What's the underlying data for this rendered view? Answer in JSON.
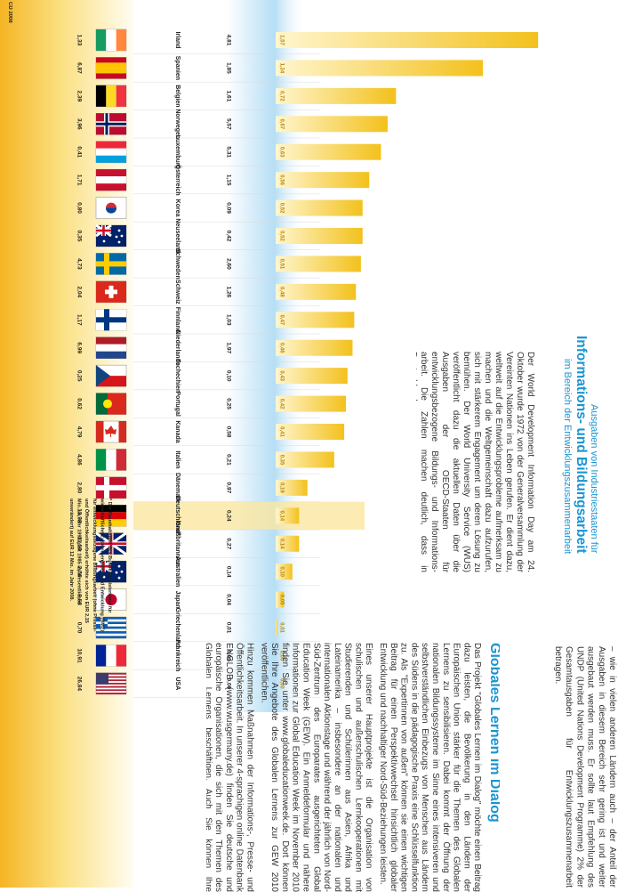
{
  "intro": {
    "title_line1": "Ausgaben von Industriestaaten für",
    "title_line2": "Informations- und Bildungsarbeit",
    "subtitle": "im Bereich der Entwicklungszusammenarbeit",
    "body": "Der World Development Information Day am 24. Oktober wurde 1972 von der Generalversammlung der Vereinten Nationen ins Leben gerufen. Er dient dazu, weltweit auf die Entwicklungsprobleme aufmerksam zu machen und die Weltgemeinschaft dazu aufzurufen, sich mit stärkerem Engagement um deren Lösung zu bemühen. Der World University Service (WUS) veröffentlicht dazu die aktuellen Daten über die Ausgaben der OECD-Staaten für entwicklungsbezogene Bildungs- und Informations-arbeit. Die Zahlen machen deutlich, dass in Deutschland"
  },
  "continuation": "– wie in vielen anderen Ländern auch – der Anteil der Ausgaben in diesem Bereich sehr gering ist und weiter ausgebaut werden muss. Er sollte laut Empfehlung des UNDP (United Nations Development Programme) 2% der Gesamtausgaben für Entwicklungszusammenarbeit betragen.",
  "section": {
    "heading": "Globales Lernen im Dialog",
    "paragraphs": [
      "Das Projekt \"Globales Lernen im Dialog\" möchte einen Beitrag dazu leisten, die Bevölkerung in den Ländern der Europäischen Union stärker für die Themen des Globalen Lernens zu sensibilisieren. Dabei kommt der Öffnung der nationalen Bildungssysteme im Sinne eines intensiveren und selbstverständlichen Einbezugs von Menschen aus Ländern des Südens in die pädagogische Praxis eine Schlüsselfunktion zu. Als \"Expertinnen von außen\" können sie einen wichtigen Beitrag für einen Perspektivwechsel hinsichtlich globaler Entwicklung und nachhaltiger Nord-Süd-Beziehungen leisten.",
      "Eines unserer Hauptprojekte ist die Organisation von schulischen und außerschulischen Lernkooperationen mit Studierenden und Schülerinnen aus Asien, Afrika und Lateinamerika – insbesondere an der nationalen und internationalen Aktionstage und während der jährlich von Nord-Süd-Zentrum des Europarates ausgerichteten Global Education Week (GEW). Ein Anmeldeformular und nähere Informationen zur Global Education Week im November 2010 finden Sie unter www.globaleducationweek.de. Dort können Sie Ihre Angebote des Globalen Lernens zur GEW 2010 veröffentlichen.",
      "Hinzu kommen Maßnahmen der Informations-, Presse- und Öffentlichkeitsarbeit. In unserer 4-sprachigen online Datenbank ENGLOB (www.wusgermany.de) finden Sie deutsche und europäische Organisationen, die sich mit den Themen des Globalen Lernens beschäftigen. Auch Sie können Ihre Institutionen dort registrieren oder Suchanfragen zum Globalen Lernen stellen."
    ]
  },
  "footnote": "* Der Haushaltstitel des Bundesministeriums für wirtschaftliche Zusammenarbeit und Entwicklung (BMZ) für entwicklungsbezogene Bildungsarbeit (ohne Presse- und Öffentlichkeitsarbeit) erhöhte sich von EUR 2,15 Mio. im Jahr 1998 (seit 1985 im Wesentlichen unverändert) auf EUR 12 Mio. im Jahr 2008.",
  "source_fragment": "CD 2008",
  "chart_data": {
    "type": "bar",
    "orientation": "horizontal",
    "color": "#f3c11c",
    "categories": [
      "Irland",
      "Spanien",
      "Belgien",
      "Norwegen",
      "Luxemburg",
      "Österreich",
      "Korea",
      "Neuseeland",
      "Schweden",
      "Schweiz",
      "Finnland",
      "Niederlande",
      "Tschechien",
      "Portugal",
      "Kanada",
      "Italien",
      "Dänemark",
      "Deutschland*",
      "Großbritannien",
      "Australien",
      "Japan",
      "Griechenland",
      "Frankreich",
      "USA"
    ],
    "values": [
      1.57,
      1.24,
      0.72,
      0.67,
      0.63,
      0.56,
      0.52,
      0.52,
      0.51,
      0.48,
      0.47,
      0.46,
      0.43,
      0.42,
      0.41,
      0.35,
      0.19,
      0.14,
      0.14,
      0.1,
      0.05,
      0.01,
      0.0,
      0.0
    ],
    "value_labels": [
      "1,57",
      "1,24",
      "0,72",
      "0,67",
      "0,63",
      "0,56",
      "0,52",
      "0,52",
      "0,51",
      "0,48",
      "0,47",
      "0,46",
      "0,43",
      "0,42",
      "0,41",
      "0,35",
      "0,19",
      "0,14",
      "0,14",
      "0,10",
      "0,05",
      "0,01",
      "0,00",
      "0,00"
    ],
    "column_total": [
      "1,33",
      "6,87",
      "2,39",
      "3,96",
      "0,41",
      "1,71",
      "0,80",
      "0,35",
      "4,73",
      "2,04",
      "1,17",
      "6,99",
      "0,25",
      "0,62",
      "4,79",
      "4,86",
      "2,80",
      "13,98",
      "11,50",
      "2,56",
      "9,58",
      "0,70",
      "10,91",
      "26,84"
    ],
    "column_education": [
      "4,81",
      "1,85",
      "1,61",
      "5,57",
      "5,31",
      "1,15",
      "0,09",
      "0,42",
      "2,60",
      "1,26",
      "1,03",
      "1,97",
      "0,10",
      "0,25",
      "0,58",
      "0,21",
      "0,97",
      "0,24",
      "0,27",
      "0,14",
      "0,04",
      "0,01",
      "0,00",
      "0,00"
    ]
  }
}
